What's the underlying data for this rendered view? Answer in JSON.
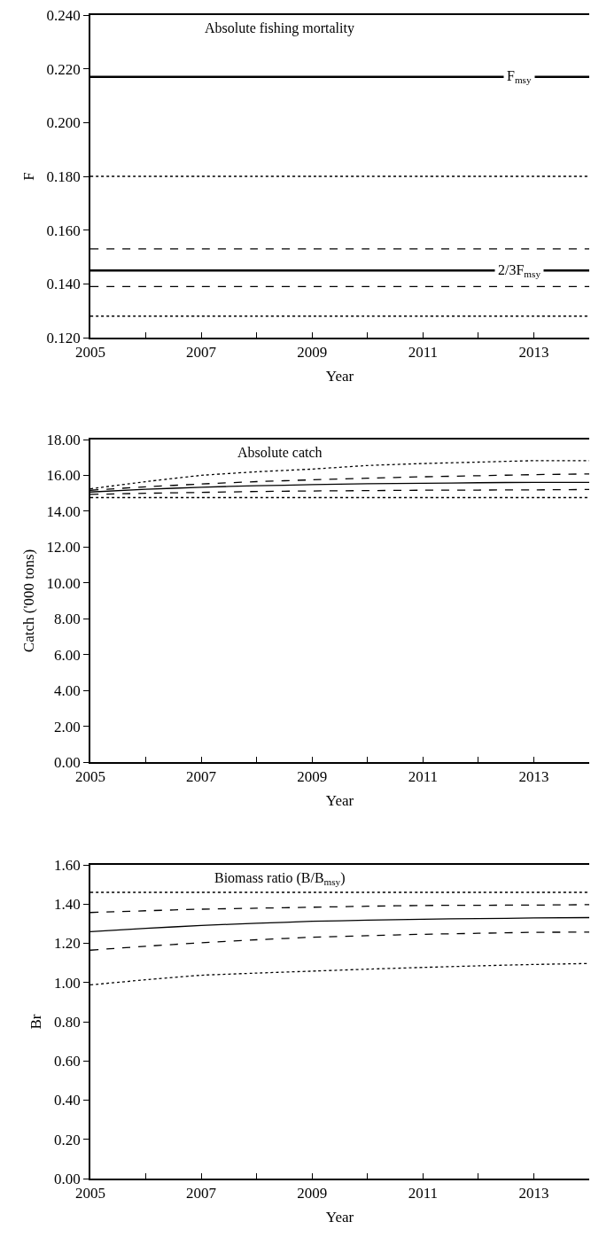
{
  "chart_data": [
    {
      "type": "line",
      "title": "Absolute fishing mortality",
      "xlabel": "Year",
      "ylabel": "F",
      "x": [
        2005,
        2006,
        2007,
        2008,
        2009,
        2010,
        2011,
        2012,
        2013,
        2014
      ],
      "series": [
        {
          "color": "#000000",
          "line_style": "dotted",
          "values": [
            0.18,
            0.18,
            0.18,
            0.18,
            0.18,
            0.18,
            0.18,
            0.18,
            0.18,
            0.18
          ]
        },
        {
          "color": "#000000",
          "line_style": "dashed",
          "values": [
            0.153,
            0.153,
            0.153,
            0.153,
            0.153,
            0.153,
            0.153,
            0.153,
            0.153,
            0.153
          ]
        },
        {
          "color": "#000000",
          "line_style": "dashed",
          "values": [
            0.139,
            0.139,
            0.139,
            0.139,
            0.139,
            0.139,
            0.139,
            0.139,
            0.139,
            0.139
          ]
        },
        {
          "color": "#000000",
          "line_style": "dotted",
          "values": [
            0.128,
            0.128,
            0.128,
            0.128,
            0.128,
            0.128,
            0.128,
            0.128,
            0.128,
            0.128
          ]
        }
      ],
      "ref_lines": [
        {
          "axis": "y",
          "value": 0.217,
          "label": "F$_{msy}$",
          "color": "#000000",
          "line_style": "solid"
        },
        {
          "axis": "y",
          "value": 0.145,
          "label": "2/3F$_{msy}$",
          "color": "#000000",
          "line_style": "solid"
        }
      ],
      "xlim": [
        2005,
        2014
      ],
      "xticks": [
        2005,
        {
          "value": 2006,
          "label": null
        },
        2007,
        {
          "value": 2008,
          "label": null
        },
        2009,
        {
          "value": 2010,
          "label": null
        },
        2011,
        {
          "value": 2012,
          "label": null
        },
        2013,
        {
          "value": 2014,
          "label": null
        }
      ],
      "ylim": [
        0.12,
        0.24
      ],
      "yticks": [
        {
          "value": 0.12,
          "label": "0.120"
        },
        {
          "value": 0.14,
          "label": "0.140"
        },
        {
          "value": 0.16,
          "label": "0.160"
        },
        {
          "value": 0.18,
          "label": "0.180"
        },
        {
          "value": 0.2,
          "label": "0.200"
        },
        {
          "value": 0.22,
          "label": "0.220"
        },
        {
          "value": 0.24,
          "label": "0.240"
        }
      ],
      "marker": "none"
    },
    {
      "type": "line",
      "title": "Absolute catch",
      "xlabel": "Year",
      "ylabel": "Catch ('000 tons)",
      "x": [
        2005,
        2006,
        2007,
        2008,
        2009,
        2010,
        2011,
        2012,
        2013,
        2014
      ],
      "series": [
        {
          "color": "#000000",
          "line_style": "dotted",
          "values": [
            15.25,
            15.65,
            16.0,
            16.2,
            16.35,
            16.55,
            16.66,
            16.74,
            16.82,
            16.82
          ]
        },
        {
          "color": "#000000",
          "line_style": "dashed",
          "values": [
            15.17,
            15.36,
            15.52,
            15.65,
            15.75,
            15.84,
            15.92,
            15.98,
            16.04,
            16.08
          ]
        },
        {
          "color": "#000000",
          "line_style": "solid",
          "values": [
            15.07,
            15.22,
            15.34,
            15.42,
            15.48,
            15.53,
            15.56,
            15.59,
            15.61,
            15.61
          ]
        },
        {
          "color": "#000000",
          "line_style": "dashed",
          "values": [
            14.94,
            15.0,
            15.05,
            15.1,
            15.13,
            15.15,
            15.17,
            15.18,
            15.19,
            15.21
          ]
        },
        {
          "color": "#000000",
          "line_style": "dotted",
          "values": [
            14.76,
            14.76,
            14.76,
            14.76,
            14.76,
            14.76,
            14.76,
            14.76,
            14.76,
            14.76
          ]
        }
      ],
      "xlim": [
        2005,
        2014
      ],
      "xticks": [
        2005,
        {
          "value": 2006,
          "label": null
        },
        2007,
        {
          "value": 2008,
          "label": null
        },
        2009,
        {
          "value": 2010,
          "label": null
        },
        2011,
        {
          "value": 2012,
          "label": null
        },
        2013,
        {
          "value": 2014,
          "label": null
        }
      ],
      "ylim": [
        0,
        18
      ],
      "yticks": [
        {
          "value": 0,
          "label": "0.00"
        },
        {
          "value": 2,
          "label": "2.00"
        },
        {
          "value": 4,
          "label": "4.00"
        },
        {
          "value": 6,
          "label": "6.00"
        },
        {
          "value": 8,
          "label": "8.00"
        },
        {
          "value": 10,
          "label": "10.00"
        },
        {
          "value": 12,
          "label": "12.00"
        },
        {
          "value": 14,
          "label": "14.00"
        },
        {
          "value": 16,
          "label": "16.00"
        },
        {
          "value": 18,
          "label": "18.00"
        }
      ],
      "marker": "none"
    },
    {
      "type": "line",
      "title": "Biomass ratio (B/B$_{msy}$)",
      "xlabel": "Year",
      "ylabel": "Br",
      "x": [
        2005,
        2006,
        2007,
        2008,
        2009,
        2010,
        2011,
        2012,
        2013,
        2014
      ],
      "series": [
        {
          "color": "#000000",
          "line_style": "dotted",
          "values": [
            1.46,
            1.46,
            1.46,
            1.46,
            1.46,
            1.46,
            1.46,
            1.46,
            1.46,
            1.46
          ]
        },
        {
          "color": "#000000",
          "line_style": "dashed",
          "values": [
            1.357,
            1.366,
            1.374,
            1.379,
            1.384,
            1.389,
            1.393,
            1.394,
            1.395,
            1.397
          ]
        },
        {
          "color": "#000000",
          "line_style": "solid",
          "values": [
            1.259,
            1.276,
            1.291,
            1.302,
            1.312,
            1.318,
            1.323,
            1.326,
            1.329,
            1.331
          ]
        },
        {
          "color": "#000000",
          "line_style": "dashed",
          "values": [
            1.165,
            1.185,
            1.203,
            1.218,
            1.231,
            1.239,
            1.246,
            1.251,
            1.256,
            1.257
          ]
        },
        {
          "color": "#000000",
          "line_style": "dotted",
          "values": [
            0.988,
            1.014,
            1.037,
            1.048,
            1.058,
            1.068,
            1.077,
            1.085,
            1.092,
            1.097
          ]
        }
      ],
      "xlim": [
        2005,
        2014
      ],
      "xticks": [
        2005,
        {
          "value": 2006,
          "label": null
        },
        2007,
        {
          "value": 2008,
          "label": null
        },
        2009,
        {
          "value": 2010,
          "label": null
        },
        2011,
        {
          "value": 2012,
          "label": null
        },
        2013,
        {
          "value": 2014,
          "label": null
        }
      ],
      "ylim": [
        0,
        1.6
      ],
      "yticks": [
        {
          "value": 0,
          "label": "0.00"
        },
        {
          "value": 0.2,
          "label": "0.20"
        },
        {
          "value": 0.4,
          "label": "0.40"
        },
        {
          "value": 0.6,
          "label": "0.60"
        },
        {
          "value": 0.8,
          "label": "0.80"
        },
        {
          "value": 1.0,
          "label": "1.00"
        },
        {
          "value": 1.2,
          "label": "1.20"
        },
        {
          "value": 1.4,
          "label": "1.40"
        },
        {
          "value": 1.6,
          "label": "1.60"
        }
      ],
      "marker": "none"
    }
  ]
}
